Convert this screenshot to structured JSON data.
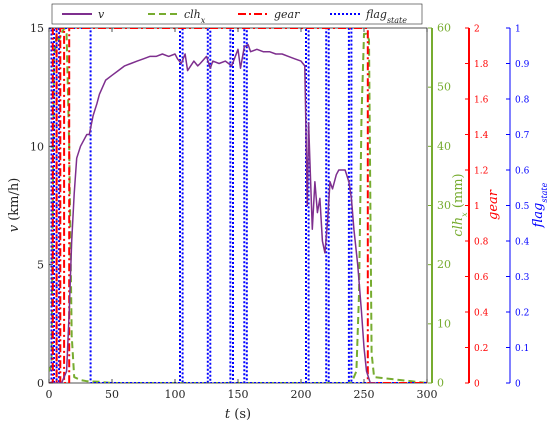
{
  "chart_data": {
    "type": "line",
    "title": "",
    "xlabel": "t (s)",
    "x_ticks": [
      "0",
      "50",
      "100",
      "150",
      "200",
      "250",
      "300"
    ],
    "xlim": [
      0,
      300
    ],
    "grid": false,
    "legend_placement": "top-left",
    "axes": [
      {
        "id": "v",
        "label": "v (km/h)",
        "side": "left",
        "color": "#000000",
        "ylim": [
          0,
          15
        ],
        "ticks": [
          "0",
          "5",
          "10",
          "15"
        ]
      },
      {
        "id": "clh",
        "label": "clh_x (mm)",
        "side": "right",
        "color": "#77ac30",
        "ylim": [
          0,
          60
        ],
        "ticks": [
          "0",
          "10",
          "20",
          "30",
          "40",
          "50",
          "60"
        ]
      },
      {
        "id": "gear",
        "label": "gear",
        "side": "right",
        "color": "#ff0000",
        "ylim": [
          0,
          2
        ],
        "ticks": [
          "0",
          "0.2",
          "0.4",
          "0.6",
          "0.8",
          "1",
          "1.2",
          "1.4",
          "1.6",
          "1.8",
          "2"
        ]
      },
      {
        "id": "flag",
        "label": "flag_state",
        "side": "right",
        "color": "#0000ff",
        "ylim": [
          0,
          1
        ],
        "ticks": [
          "0",
          "0.1",
          "0.2",
          "0.3",
          "0.4",
          "0.5",
          "0.6",
          "0.7",
          "0.8",
          "0.9",
          "1"
        ]
      }
    ],
    "series": [
      {
        "name": "v",
        "axis": "v",
        "color": "#7e2f8e",
        "dash": "solid",
        "x": [
          0,
          10,
          14,
          16,
          18,
          20,
          22,
          25,
          30,
          32,
          35,
          38,
          40,
          45,
          50,
          55,
          60,
          65,
          70,
          75,
          80,
          85,
          90,
          95,
          100,
          102,
          105,
          108,
          110,
          115,
          118,
          120,
          125,
          128,
          130,
          135,
          140,
          145,
          150,
          152,
          155,
          158,
          160,
          165,
          170,
          175,
          180,
          185,
          190,
          195,
          200,
          203,
          205,
          206,
          207,
          209,
          211,
          213,
          215,
          217,
          219,
          221,
          223,
          225,
          228,
          230,
          235,
          238,
          240,
          242,
          245,
          248,
          250,
          252,
          255,
          258,
          260
        ],
        "y": [
          0,
          0,
          0.5,
          3,
          6,
          8,
          9.5,
          10,
          10.5,
          10.5,
          11.3,
          11.8,
          12.2,
          12.8,
          13,
          13.2,
          13.4,
          13.5,
          13.6,
          13.7,
          13.8,
          13.8,
          13.9,
          13.8,
          13.9,
          13.7,
          13.5,
          13.9,
          13.2,
          13.6,
          13.4,
          13.5,
          13.8,
          13.3,
          13.6,
          13.5,
          13.6,
          13.4,
          14.1,
          13.3,
          14.2,
          14.3,
          14.0,
          14.1,
          14.0,
          14.0,
          13.9,
          13.9,
          13.8,
          13.7,
          13.6,
          13.4,
          7.5,
          11,
          9.5,
          6.5,
          8.5,
          7.2,
          7.8,
          6.0,
          5.5,
          6.8,
          8.5,
          8.2,
          8.8,
          9.0,
          9.0,
          8.5,
          7.8,
          6.5,
          5.0,
          3.0,
          1.5,
          0.5,
          0,
          0,
          0
        ]
      },
      {
        "name": "clh_x",
        "axis": "clh",
        "color": "#77ac30",
        "dash": "dashed",
        "x": [
          0,
          2,
          4,
          6,
          8,
          10,
          12,
          14,
          16,
          18,
          20,
          25,
          30,
          40,
          50,
          100,
          150,
          200,
          240,
          244,
          246,
          248,
          250,
          252,
          254,
          256,
          258,
          300
        ],
        "y": [
          2,
          3,
          55,
          59,
          58,
          59,
          60,
          59,
          40,
          8,
          1,
          0.5,
          0.3,
          0.2,
          0,
          0,
          0,
          0,
          0,
          2,
          15,
          45,
          59,
          59,
          58,
          5,
          1,
          0
        ]
      },
      {
        "name": "gear",
        "axis": "gear",
        "color": "#ff0000",
        "dash": "dashdot",
        "x": [
          0,
          3,
          3,
          6,
          6,
          9,
          9,
          12,
          12,
          16,
          16,
          253,
          253,
          300
        ],
        "y": [
          0,
          0,
          2,
          2,
          0,
          0,
          2,
          2,
          0,
          0,
          2,
          2,
          0,
          0
        ]
      },
      {
        "name": "flag_state",
        "axis": "flag",
        "color": "#0000ff",
        "dash": "dotted",
        "x": [
          0,
          2,
          2,
          4,
          4,
          6,
          6,
          8,
          8,
          33,
          33,
          104,
          104,
          106,
          106,
          126,
          126,
          128,
          128,
          144,
          144,
          146,
          146,
          155,
          155,
          157,
          157,
          204,
          204,
          206,
          206,
          220,
          220,
          222,
          222,
          238,
          238,
          240,
          240,
          300
        ],
        "y": [
          1,
          1,
          0,
          0,
          1,
          1,
          0,
          0,
          1,
          1,
          0,
          0,
          1,
          1,
          0,
          0,
          1,
          1,
          0,
          0,
          1,
          1,
          0,
          0,
          1,
          1,
          0,
          0,
          1,
          1,
          0,
          0,
          1,
          1,
          0,
          0,
          1,
          1,
          0,
          0
        ]
      }
    ],
    "legend": [
      {
        "series": "v",
        "text": "v"
      },
      {
        "series": "clh_x",
        "text": "clh_x"
      },
      {
        "series": "gear",
        "text": "gear"
      },
      {
        "series": "flag_state",
        "text": "flag_state"
      }
    ]
  }
}
